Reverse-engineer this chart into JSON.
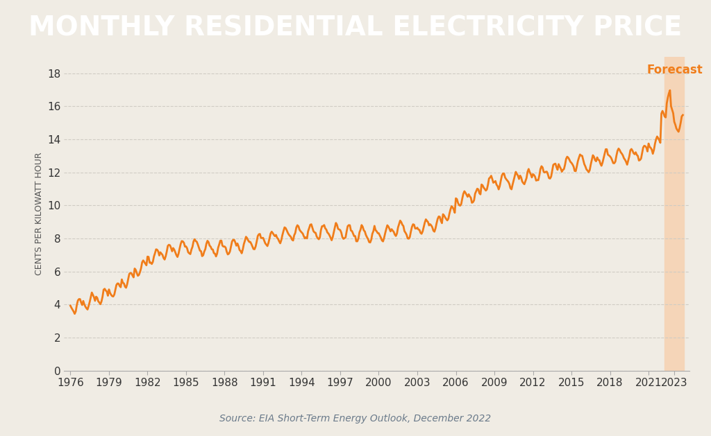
{
  "title": "MONTHLY RESIDENTIAL ELECTRICITY PRICE",
  "title_bg_color": "#2d3748",
  "title_text_color": "#ffffff",
  "bg_color": "#f0ece4",
  "line_color": "#f07d1a",
  "forecast_bg_color": "#f5d5b8",
  "forecast_label_color": "#f07d1a",
  "forecast_start_year": 2022.25,
  "forecast_end_year": 2023.75,
  "ylabel": "CENTS PER KILOWATT HOUR",
  "source_text": "Source: EIA Short-Term Energy Outlook, December 2022",
  "source_color": "#6a7a8a",
  "yticks": [
    0,
    2,
    4,
    6,
    8,
    10,
    12,
    14,
    16,
    18
  ],
  "ylim": [
    0,
    19
  ],
  "xlim": [
    1975.5,
    2024.2
  ],
  "xtick_years": [
    1976,
    1979,
    1982,
    1985,
    1988,
    1991,
    1994,
    1997,
    2000,
    2003,
    2006,
    2009,
    2012,
    2015,
    2018,
    2021,
    2023
  ],
  "grid_color": "#d0ccc4",
  "axis_color": "#555555"
}
